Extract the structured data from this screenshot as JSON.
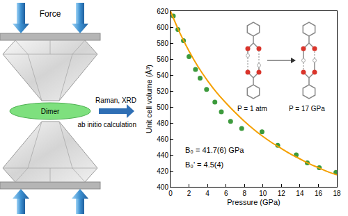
{
  "chart_data": {
    "type": "scatter",
    "x_label": "Pressure (GPa)",
    "y_label": "Unit cell volume (Å³)",
    "xlim": [
      0,
      18
    ],
    "xticks": [
      0,
      2,
      4,
      6,
      8,
      10,
      12,
      14,
      16,
      18
    ],
    "ylim": [
      400,
      620
    ],
    "yticks": [
      400,
      420,
      440,
      460,
      480,
      500,
      520,
      540,
      560,
      580,
      600,
      620
    ],
    "grid": false,
    "series": [
      {
        "type": "scatter",
        "marker": "circle",
        "color": "#3c9a3c",
        "x": [
          0.3,
          0.8,
          1.4,
          2.0,
          2.7,
          3.2,
          3.9,
          4.8,
          5.5,
          6.5,
          7.7,
          9.9,
          11.6,
          13.6,
          14.8,
          16.1,
          17.9
        ],
        "values": [
          614,
          597,
          583,
          563,
          547,
          536,
          522,
          506,
          494,
          482,
          473,
          469,
          452,
          440,
          430,
          424,
          418
        ]
      },
      {
        "type": "line",
        "line_style": "solid",
        "color": "#f5a000",
        "x": [
          0,
          1,
          2,
          3,
          4,
          5,
          6,
          7,
          8,
          9,
          10,
          11,
          12,
          13,
          14,
          15,
          16,
          17,
          18
        ],
        "values": [
          620,
          593,
          570,
          550,
          533,
          518,
          505,
          493,
          482,
          472,
          463,
          455,
          448,
          441,
          435,
          429,
          424,
          419,
          415
        ]
      }
    ],
    "annotations": [
      "B₀ = 41.7(6) GPa",
      "B₀' = 4.5(4)",
      "P = 1 atm",
      "P = 17 GPa"
    ]
  },
  "diagram": {
    "force_label": "Force",
    "sample_label": "Dimer",
    "method_labels": [
      "Raman, XRD",
      "ab initio calculation"
    ]
  }
}
